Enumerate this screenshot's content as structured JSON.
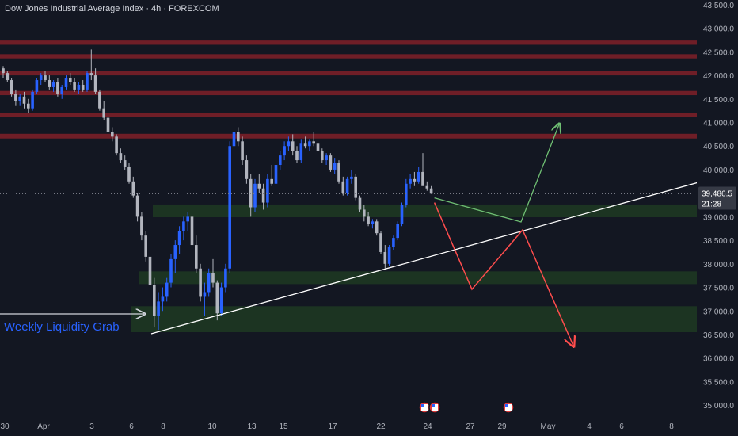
{
  "header": {
    "title": "Dow Jones Industrial Average Index · 4h · FOREXCOM"
  },
  "colors": {
    "background": "#131722",
    "resistance": "#7a1f28",
    "support": "#1e3a22",
    "bull": "#2962ff",
    "bear": "#b2b5be",
    "trendline": "#ffffff",
    "bullish_path": "#6fbf73",
    "bearish_path": "#ff4d4d",
    "annotation": "#2962ff"
  },
  "chart_data": {
    "type": "candlestick",
    "title": "Dow Jones Industrial Average Index · 4h · FOREXCOM",
    "ylim": [
      34800,
      43600
    ],
    "y_ticks": [
      "43,500.0",
      "43,000.0",
      "42,500.0",
      "42,000.0",
      "41,500.0",
      "41,000.0",
      "40,500.0",
      "40,000.0",
      "39,500.0",
      "39,000.0",
      "38,500.0",
      "38,000.0",
      "37,500.0",
      "37,000.0",
      "36,500.0",
      "36,000.0",
      "35,500.0",
      "35,000.0"
    ],
    "x_ticks": [
      "30",
      "Apr",
      "3",
      "6",
      "8",
      "10",
      "13",
      "15",
      "17",
      "22",
      "24",
      "27",
      "29",
      "May",
      "4",
      "6",
      "8"
    ],
    "current_price": "39,486.5",
    "countdown": "21:28",
    "series": [
      {
        "values": [
          [
            42150,
            42200,
            41950,
            42050
          ],
          [
            42050,
            42100,
            41850,
            41900
          ],
          [
            41900,
            41950,
            41550,
            41600
          ],
          [
            41600,
            41700,
            41350,
            41450
          ],
          [
            41450,
            41600,
            41350,
            41550
          ],
          [
            41550,
            41650,
            41300,
            41400
          ],
          [
            41400,
            41500,
            41200,
            41300
          ],
          [
            41300,
            41700,
            41250,
            41650
          ],
          [
            41650,
            41950,
            41600,
            41900
          ],
          [
            41900,
            42050,
            41800,
            42000
          ],
          [
            42000,
            42100,
            41850,
            41900
          ],
          [
            41900,
            42000,
            41700,
            41750
          ],
          [
            41750,
            41900,
            41650,
            41850
          ],
          [
            41850,
            41950,
            41550,
            41600
          ],
          [
            41600,
            41800,
            41500,
            41750
          ],
          [
            41750,
            42000,
            41700,
            41950
          ],
          [
            41950,
            42050,
            41800,
            41850
          ],
          [
            41850,
            41950,
            41650,
            41700
          ],
          [
            41700,
            41850,
            41600,
            41800
          ],
          [
            41800,
            41900,
            41650,
            41700
          ],
          [
            41700,
            42100,
            41650,
            42050
          ],
          [
            42050,
            42550,
            41900,
            42000
          ],
          [
            42000,
            42150,
            41600,
            41650
          ],
          [
            41650,
            41700,
            41250,
            41300
          ],
          [
            41300,
            41450,
            41050,
            41100
          ],
          [
            41100,
            41200,
            40750,
            40800
          ],
          [
            40800,
            40900,
            40600,
            40700
          ],
          [
            40700,
            40750,
            40300,
            40350
          ],
          [
            40350,
            40450,
            40150,
            40200
          ],
          [
            40200,
            40300,
            40000,
            40050
          ],
          [
            40050,
            40150,
            39700,
            39750
          ],
          [
            39750,
            39850,
            39400,
            39450
          ],
          [
            39450,
            39500,
            38900,
            39000
          ],
          [
            39000,
            39100,
            38500,
            38600
          ],
          [
            38600,
            38700,
            38050,
            38150
          ],
          [
            38150,
            38200,
            37500,
            37550
          ],
          [
            37550,
            37700,
            36650,
            36900
          ],
          [
            36900,
            37400,
            36600,
            37200
          ],
          [
            37200,
            37500,
            37000,
            37300
          ],
          [
            37300,
            37700,
            37200,
            37600
          ],
          [
            37600,
            38200,
            37500,
            38100
          ],
          [
            38100,
            38500,
            37800,
            38400
          ],
          [
            38400,
            38800,
            38200,
            38700
          ],
          [
            38700,
            39000,
            38500,
            38900
          ],
          [
            38900,
            39100,
            38700,
            39000
          ],
          [
            39000,
            39100,
            38300,
            38400
          ],
          [
            38400,
            38600,
            37800,
            37900
          ],
          [
            37900,
            38000,
            37200,
            37300
          ],
          [
            37300,
            37600,
            36900,
            37400
          ],
          [
            37400,
            37900,
            37300,
            37800
          ],
          [
            37800,
            38100,
            37500,
            37600
          ],
          [
            37600,
            37650,
            36800,
            36950
          ],
          [
            36950,
            37600,
            36900,
            37500
          ],
          [
            37500,
            38000,
            37400,
            37900
          ],
          [
            37900,
            40600,
            37800,
            40500
          ],
          [
            40500,
            40900,
            40400,
            40800
          ],
          [
            40800,
            40900,
            40500,
            40600
          ],
          [
            40600,
            40700,
            40100,
            40200
          ],
          [
            40200,
            40300,
            39700,
            39800
          ],
          [
            39800,
            39900,
            39000,
            39200
          ],
          [
            39200,
            39800,
            39100,
            39700
          ],
          [
            39700,
            39900,
            39500,
            39600
          ],
          [
            39600,
            39700,
            39150,
            39300
          ],
          [
            39300,
            39900,
            39200,
            39800
          ],
          [
            39800,
            40100,
            39650,
            39700
          ],
          [
            39700,
            40200,
            39600,
            40100
          ],
          [
            40100,
            40400,
            40000,
            40300
          ],
          [
            40300,
            40600,
            40200,
            40500
          ],
          [
            40500,
            40700,
            40400,
            40600
          ],
          [
            40600,
            40750,
            40300,
            40400
          ],
          [
            40400,
            40500,
            40150,
            40200
          ],
          [
            40200,
            40650,
            40150,
            40550
          ],
          [
            40550,
            40700,
            40450,
            40500
          ],
          [
            40500,
            40650,
            40400,
            40600
          ],
          [
            40600,
            40800,
            40500,
            40550
          ],
          [
            40550,
            40650,
            40350,
            40400
          ],
          [
            40400,
            40450,
            40150,
            40200
          ],
          [
            40200,
            40350,
            40100,
            40300
          ],
          [
            40300,
            40350,
            39950,
            40000
          ],
          [
            40000,
            40250,
            39900,
            40150
          ],
          [
            40150,
            40200,
            39700,
            39750
          ],
          [
            39750,
            39850,
            39450,
            39500
          ],
          [
            39500,
            39850,
            39450,
            39800
          ],
          [
            39800,
            40000,
            39700,
            39850
          ],
          [
            39850,
            39900,
            39350,
            39400
          ],
          [
            39400,
            39450,
            39100,
            39150
          ],
          [
            39150,
            39250,
            38900,
            39000
          ],
          [
            39000,
            39100,
            38800,
            38850
          ],
          [
            38850,
            38950,
            38750,
            38900
          ],
          [
            38900,
            38950,
            38600,
            38650
          ],
          [
            38650,
            38700,
            38200,
            38250
          ],
          [
            38250,
            38400,
            37900,
            38000
          ],
          [
            38000,
            38400,
            37950,
            38350
          ],
          [
            38350,
            38600,
            38300,
            38550
          ],
          [
            38550,
            38900,
            38500,
            38850
          ],
          [
            38850,
            39300,
            38800,
            39250
          ],
          [
            39250,
            39800,
            39200,
            39700
          ],
          [
            39700,
            39900,
            39600,
            39800
          ],
          [
            39800,
            39950,
            39650,
            39750
          ],
          [
            39750,
            40050,
            39700,
            39950
          ],
          [
            39950,
            40350,
            39850,
            39650
          ],
          [
            39650,
            39750,
            39550,
            39600
          ],
          [
            39600,
            39650,
            39480,
            39490
          ]
        ]
      }
    ],
    "horizontal_zones": [
      {
        "kind": "resistance",
        "from": 42650,
        "to": 42740
      },
      {
        "kind": "resistance",
        "from": 42360,
        "to": 42450
      },
      {
        "kind": "resistance",
        "from": 42000,
        "to": 42090
      },
      {
        "kind": "resistance",
        "from": 41580,
        "to": 41670
      },
      {
        "kind": "resistance",
        "from": 41120,
        "to": 41210
      },
      {
        "kind": "resistance",
        "from": 40660,
        "to": 40760
      },
      {
        "kind": "support",
        "from": 38990,
        "to": 39260
      },
      {
        "kind": "support",
        "from": 37570,
        "to": 37840
      },
      {
        "kind": "support",
        "from": 36550,
        "to": 37100
      }
    ],
    "trendline": {
      "from": [
        36550,
        "6"
      ],
      "to": [
        40000,
        "8"
      ]
    },
    "annotations": [
      {
        "text": "Weekly Liquidity Grab"
      }
    ]
  }
}
